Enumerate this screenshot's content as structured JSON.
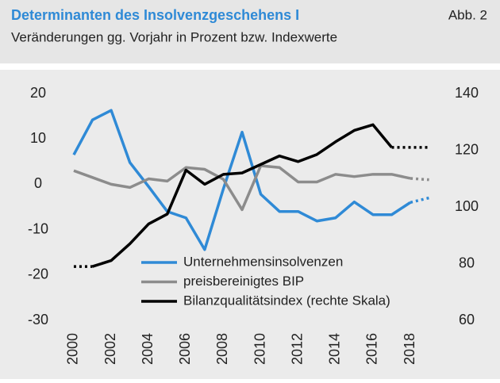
{
  "chart_data": {
    "type": "line",
    "title": "Determinanten des Insolvenzgeschehens I",
    "figure_label": "Abb. 2",
    "subtitle": "Veränderungen gg. Vorjahr in Prozent bzw. Indexwerte",
    "x": [
      2000,
      2001,
      2002,
      2003,
      2004,
      2005,
      2006,
      2007,
      2008,
      2009,
      2010,
      2011,
      2012,
      2013,
      2014,
      2015,
      2016,
      2017,
      2018,
      2019
    ],
    "xlim": [
      1999,
      2020
    ],
    "xticks": [
      2000,
      2002,
      2004,
      2006,
      2008,
      2010,
      2012,
      2014,
      2016,
      2018
    ],
    "ylim": [
      -30,
      20
    ],
    "yticks": [
      -30,
      -20,
      -10,
      0,
      10,
      20
    ],
    "y2lim": [
      60,
      140
    ],
    "y2ticks": [
      60,
      80,
      100,
      120,
      140
    ],
    "grid": false,
    "legend": "lower right",
    "series": [
      {
        "name": "Unternehmensinsolvenzen",
        "color": "#2f8ad6",
        "solid_range": [
          2000,
          2018
        ],
        "values": [
          6.5,
          14.2,
          16.3,
          4.8,
          -0.5,
          -6,
          -7.4,
          -14.4,
          -1,
          11.5,
          -2.2,
          -6,
          -6,
          -8.1,
          -7.4,
          -3.9,
          -6.7,
          -6.7,
          -4,
          -3
        ]
      },
      {
        "name": "preisbereinigtes BIP",
        "color": "#8c8c8c",
        "solid_range": [
          2000,
          2018
        ],
        "values": [
          3,
          1.5,
          0,
          -0.7,
          1.2,
          0.7,
          3.7,
          3.3,
          1.1,
          -5.6,
          4.1,
          3.7,
          0.5,
          0.5,
          2.2,
          1.7,
          2.2,
          2.2,
          1.3,
          1
        ]
      },
      {
        "name": "Bilanzqualitätsindex (rechte Skala)",
        "color": "#000000",
        "axis": "y2",
        "solid_range": [
          2001,
          2017
        ],
        "values": [
          79,
          79,
          81.1,
          87,
          94,
          97.5,
          113,
          108,
          111.5,
          112,
          115,
          118,
          116,
          118.5,
          123,
          127,
          129,
          121,
          121,
          121
        ]
      }
    ]
  }
}
